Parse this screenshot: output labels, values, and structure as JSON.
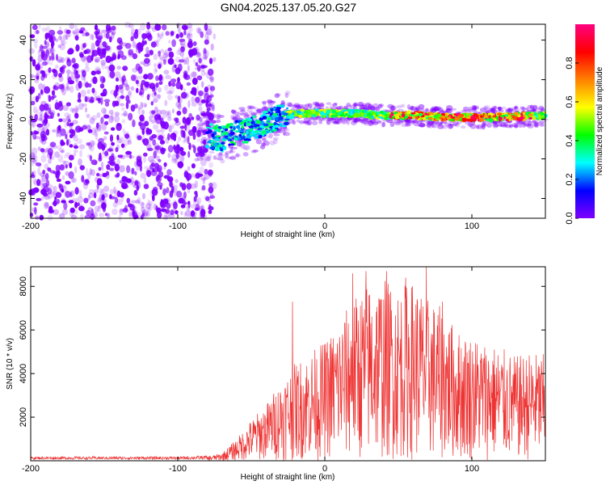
{
  "title": "GN04.2025.137.05.20.G27",
  "chart_data": [
    {
      "type": "heatmap",
      "xlabel": "Height of straight line (km)",
      "ylabel": "Frequency (Hz)",
      "xlim": [
        -200,
        150
      ],
      "ylim": [
        -50,
        48
      ],
      "xticks": [
        -200,
        -100,
        0,
        100
      ],
      "yticks": [
        -40,
        -20,
        0,
        20,
        40
      ],
      "colorbar": {
        "label": "Normalized spectral amplitude",
        "range": [
          0,
          1
        ],
        "ticks": [
          0.0,
          0.2,
          0.4,
          0.6,
          0.8
        ],
        "tick_labels": [
          "0.0",
          "0.2",
          "0.4",
          "0.6",
          "0.8"
        ],
        "colormap": "gist_rainbow_r",
        "colors": [
          "#ffffff",
          "#8000ff",
          "#0000ff",
          "#00ffff",
          "#00ff00",
          "#ffff00",
          "#ff8000",
          "#ff0000",
          "#ff0080"
        ]
      },
      "ridge": [
        {
          "x": -80,
          "y": -8
        },
        {
          "x": -70,
          "y": -10
        },
        {
          "x": -60,
          "y": -7
        },
        {
          "x": -50,
          "y": -5
        },
        {
          "x": -40,
          "y": -2
        },
        {
          "x": -30,
          "y": 2
        },
        {
          "x": -20,
          "y": 3
        },
        {
          "x": 0,
          "y": 3
        },
        {
          "x": 20,
          "y": 3
        },
        {
          "x": 40,
          "y": 2
        },
        {
          "x": 60,
          "y": 2
        },
        {
          "x": 80,
          "y": 1
        },
        {
          "x": 100,
          "y": 1
        },
        {
          "x": 120,
          "y": 1
        },
        {
          "x": 150,
          "y": 2
        }
      ]
    },
    {
      "type": "line",
      "xlabel": "Height of straight line (km)",
      "ylabel": "SNR (10 * v/v)",
      "xlim": [
        -200,
        150
      ],
      "ylim": [
        0,
        8900
      ],
      "xticks": [
        -200,
        -100,
        0,
        100
      ],
      "yticks": [
        2000,
        4000,
        6000,
        8000
      ],
      "series": [
        {
          "color": "#ee3333",
          "envelope": [
            {
              "x": -200,
              "y": 150
            },
            {
              "x": -150,
              "y": 150
            },
            {
              "x": -100,
              "y": 150
            },
            {
              "x": -80,
              "y": 200
            },
            {
              "x": -70,
              "y": 350
            },
            {
              "x": -60,
              "y": 1000
            },
            {
              "x": -50,
              "y": 1900
            },
            {
              "x": -40,
              "y": 2600
            },
            {
              "x": -30,
              "y": 3700
            },
            {
              "x": -20,
              "y": 4500
            },
            {
              "x": -10,
              "y": 5000
            },
            {
              "x": 0,
              "y": 5500
            },
            {
              "x": 10,
              "y": 6500
            },
            {
              "x": 20,
              "y": 7500
            },
            {
              "x": 30,
              "y": 8200
            },
            {
              "x": 40,
              "y": 8400
            },
            {
              "x": 50,
              "y": 8000
            },
            {
              "x": 60,
              "y": 8300
            },
            {
              "x": 70,
              "y": 7500
            },
            {
              "x": 80,
              "y": 7000
            },
            {
              "x": 90,
              "y": 6000
            },
            {
              "x": 100,
              "y": 5800
            },
            {
              "x": 110,
              "y": 5500
            },
            {
              "x": 120,
              "y": 5200
            },
            {
              "x": 130,
              "y": 4800
            },
            {
              "x": 140,
              "y": 5000
            },
            {
              "x": 150,
              "y": 4900
            }
          ],
          "peaks": [
            {
              "x": -22,
              "y": 7300
            },
            {
              "x": 19,
              "y": 8600
            },
            {
              "x": 28,
              "y": 8700
            },
            {
              "x": 42,
              "y": 8700
            },
            {
              "x": 55,
              "y": 8400
            },
            {
              "x": 69,
              "y": 8900
            },
            {
              "x": 80,
              "y": 7300
            }
          ]
        }
      ]
    }
  ]
}
